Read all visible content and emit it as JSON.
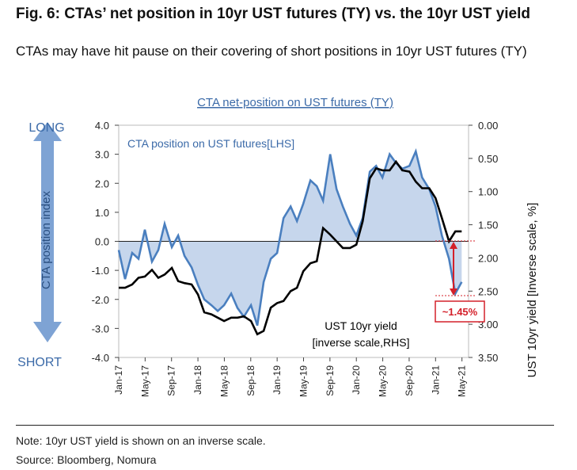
{
  "title": "Fig. 6: CTAs’ net position in 10yr UST futures (TY) vs. the 10yr UST yield",
  "subtitle": "CTAs may have hit pause on their covering of short positions in 10yr UST futures (TY)",
  "note": "Note: 10yr UST yield is shown on an inverse scale.",
  "source": "Source: Bloomberg, Nomura",
  "colors": {
    "cta_line": "#4a7fbf",
    "cta_fill": "#c6d6ec",
    "yield_line": "#000000",
    "arrow": "#7ea3d4",
    "annotation": "#d4202a",
    "header_text": "#3b6aa8"
  },
  "chart_data": {
    "type": "line",
    "title": "CTA net-position on UST futures (TY)",
    "x_tick_labels": [
      "Jan-17",
      "May-17",
      "Sep-17",
      "Jan-18",
      "May-18",
      "Sep-18",
      "Jan-19",
      "May-19",
      "Sep-19",
      "Jan-20",
      "May-20",
      "Sep-20",
      "Jan-21",
      "May-21"
    ],
    "x_range": [
      "2017-01",
      "2021-05"
    ],
    "left_axis": {
      "label": "CTA position index",
      "ylim": [
        -4.0,
        4.0
      ],
      "ticks": [
        "4.0",
        "3.0",
        "2.0",
        "1.0",
        "0.0",
        "-1.0",
        "-2.0",
        "-3.0",
        "-4.0"
      ],
      "top_label": "LONG",
      "bottom_label": "SHORT"
    },
    "right_axis": {
      "label": "UST 10yr yield [Inverse scale, %]",
      "inverted": true,
      "ylim": [
        0.0,
        3.5
      ],
      "ticks": [
        "0.00",
        "0.50",
        "1.00",
        "1.50",
        "2.00",
        "2.50",
        "3.00",
        "3.50"
      ]
    },
    "series": [
      {
        "name": "CTA position on UST futures[LHS]",
        "axis": "left",
        "x": [
          2017.0,
          2017.08,
          2017.17,
          2017.25,
          2017.33,
          2017.42,
          2017.5,
          2017.58,
          2017.67,
          2017.75,
          2017.83,
          2017.92,
          2018.0,
          2018.08,
          2018.17,
          2018.25,
          2018.33,
          2018.42,
          2018.5,
          2018.58,
          2018.67,
          2018.75,
          2018.83,
          2018.92,
          2019.0,
          2019.08,
          2019.17,
          2019.25,
          2019.33,
          2019.42,
          2019.5,
          2019.58,
          2019.67,
          2019.75,
          2019.83,
          2019.92,
          2020.0,
          2020.08,
          2020.17,
          2020.25,
          2020.33,
          2020.42,
          2020.5,
          2020.58,
          2020.67,
          2020.75,
          2020.83,
          2020.92,
          2021.0,
          2021.08,
          2021.17,
          2021.25,
          2021.33
        ],
        "values": [
          -0.3,
          -1.3,
          -0.4,
          -0.6,
          0.4,
          -0.7,
          -0.3,
          0.6,
          -0.2,
          0.2,
          -0.5,
          -0.9,
          -1.5,
          -2.0,
          -2.2,
          -2.4,
          -2.2,
          -1.8,
          -2.3,
          -2.6,
          -2.2,
          -2.9,
          -1.4,
          -0.6,
          -0.4,
          0.8,
          1.2,
          0.7,
          1.3,
          2.1,
          1.9,
          1.4,
          3.0,
          1.8,
          1.2,
          0.6,
          0.2,
          0.8,
          2.4,
          2.6,
          2.2,
          3.0,
          2.7,
          2.5,
          2.6,
          3.1,
          2.2,
          1.8,
          1.2,
          0.2,
          -0.6,
          -1.8,
          -1.4
        ]
      },
      {
        "name": "UST 10yr yield [inverse scale,RHS]",
        "axis": "right",
        "x": [
          2017.0,
          2017.08,
          2017.17,
          2017.25,
          2017.33,
          2017.42,
          2017.5,
          2017.58,
          2017.67,
          2017.75,
          2017.83,
          2017.92,
          2018.0,
          2018.08,
          2018.17,
          2018.25,
          2018.33,
          2018.42,
          2018.5,
          2018.58,
          2018.67,
          2018.75,
          2018.83,
          2018.92,
          2019.0,
          2019.08,
          2019.17,
          2019.25,
          2019.33,
          2019.42,
          2019.5,
          2019.58,
          2019.67,
          2019.75,
          2019.83,
          2019.92,
          2020.0,
          2020.08,
          2020.17,
          2020.25,
          2020.33,
          2020.42,
          2020.5,
          2020.58,
          2020.67,
          2020.75,
          2020.83,
          2020.92,
          2021.0,
          2021.08,
          2021.17,
          2021.25,
          2021.33
        ],
        "values": [
          2.45,
          2.45,
          2.4,
          2.3,
          2.28,
          2.18,
          2.3,
          2.25,
          2.15,
          2.35,
          2.38,
          2.4,
          2.55,
          2.82,
          2.85,
          2.9,
          2.95,
          2.9,
          2.9,
          2.88,
          2.95,
          3.15,
          3.1,
          2.75,
          2.68,
          2.65,
          2.5,
          2.45,
          2.2,
          2.08,
          2.05,
          1.55,
          1.65,
          1.75,
          1.85,
          1.85,
          1.8,
          1.45,
          0.8,
          0.65,
          0.68,
          0.68,
          0.55,
          0.68,
          0.7,
          0.85,
          0.95,
          0.95,
          1.1,
          1.4,
          1.75,
          1.6,
          1.6
        ]
      }
    ],
    "annotations": {
      "series_label_left": "CTA position on UST futures[LHS]",
      "series_label_right_line1": "UST 10yr yield",
      "series_label_right_line2": "[inverse scale,RHS]",
      "change_callout": "~1.45%"
    }
  }
}
